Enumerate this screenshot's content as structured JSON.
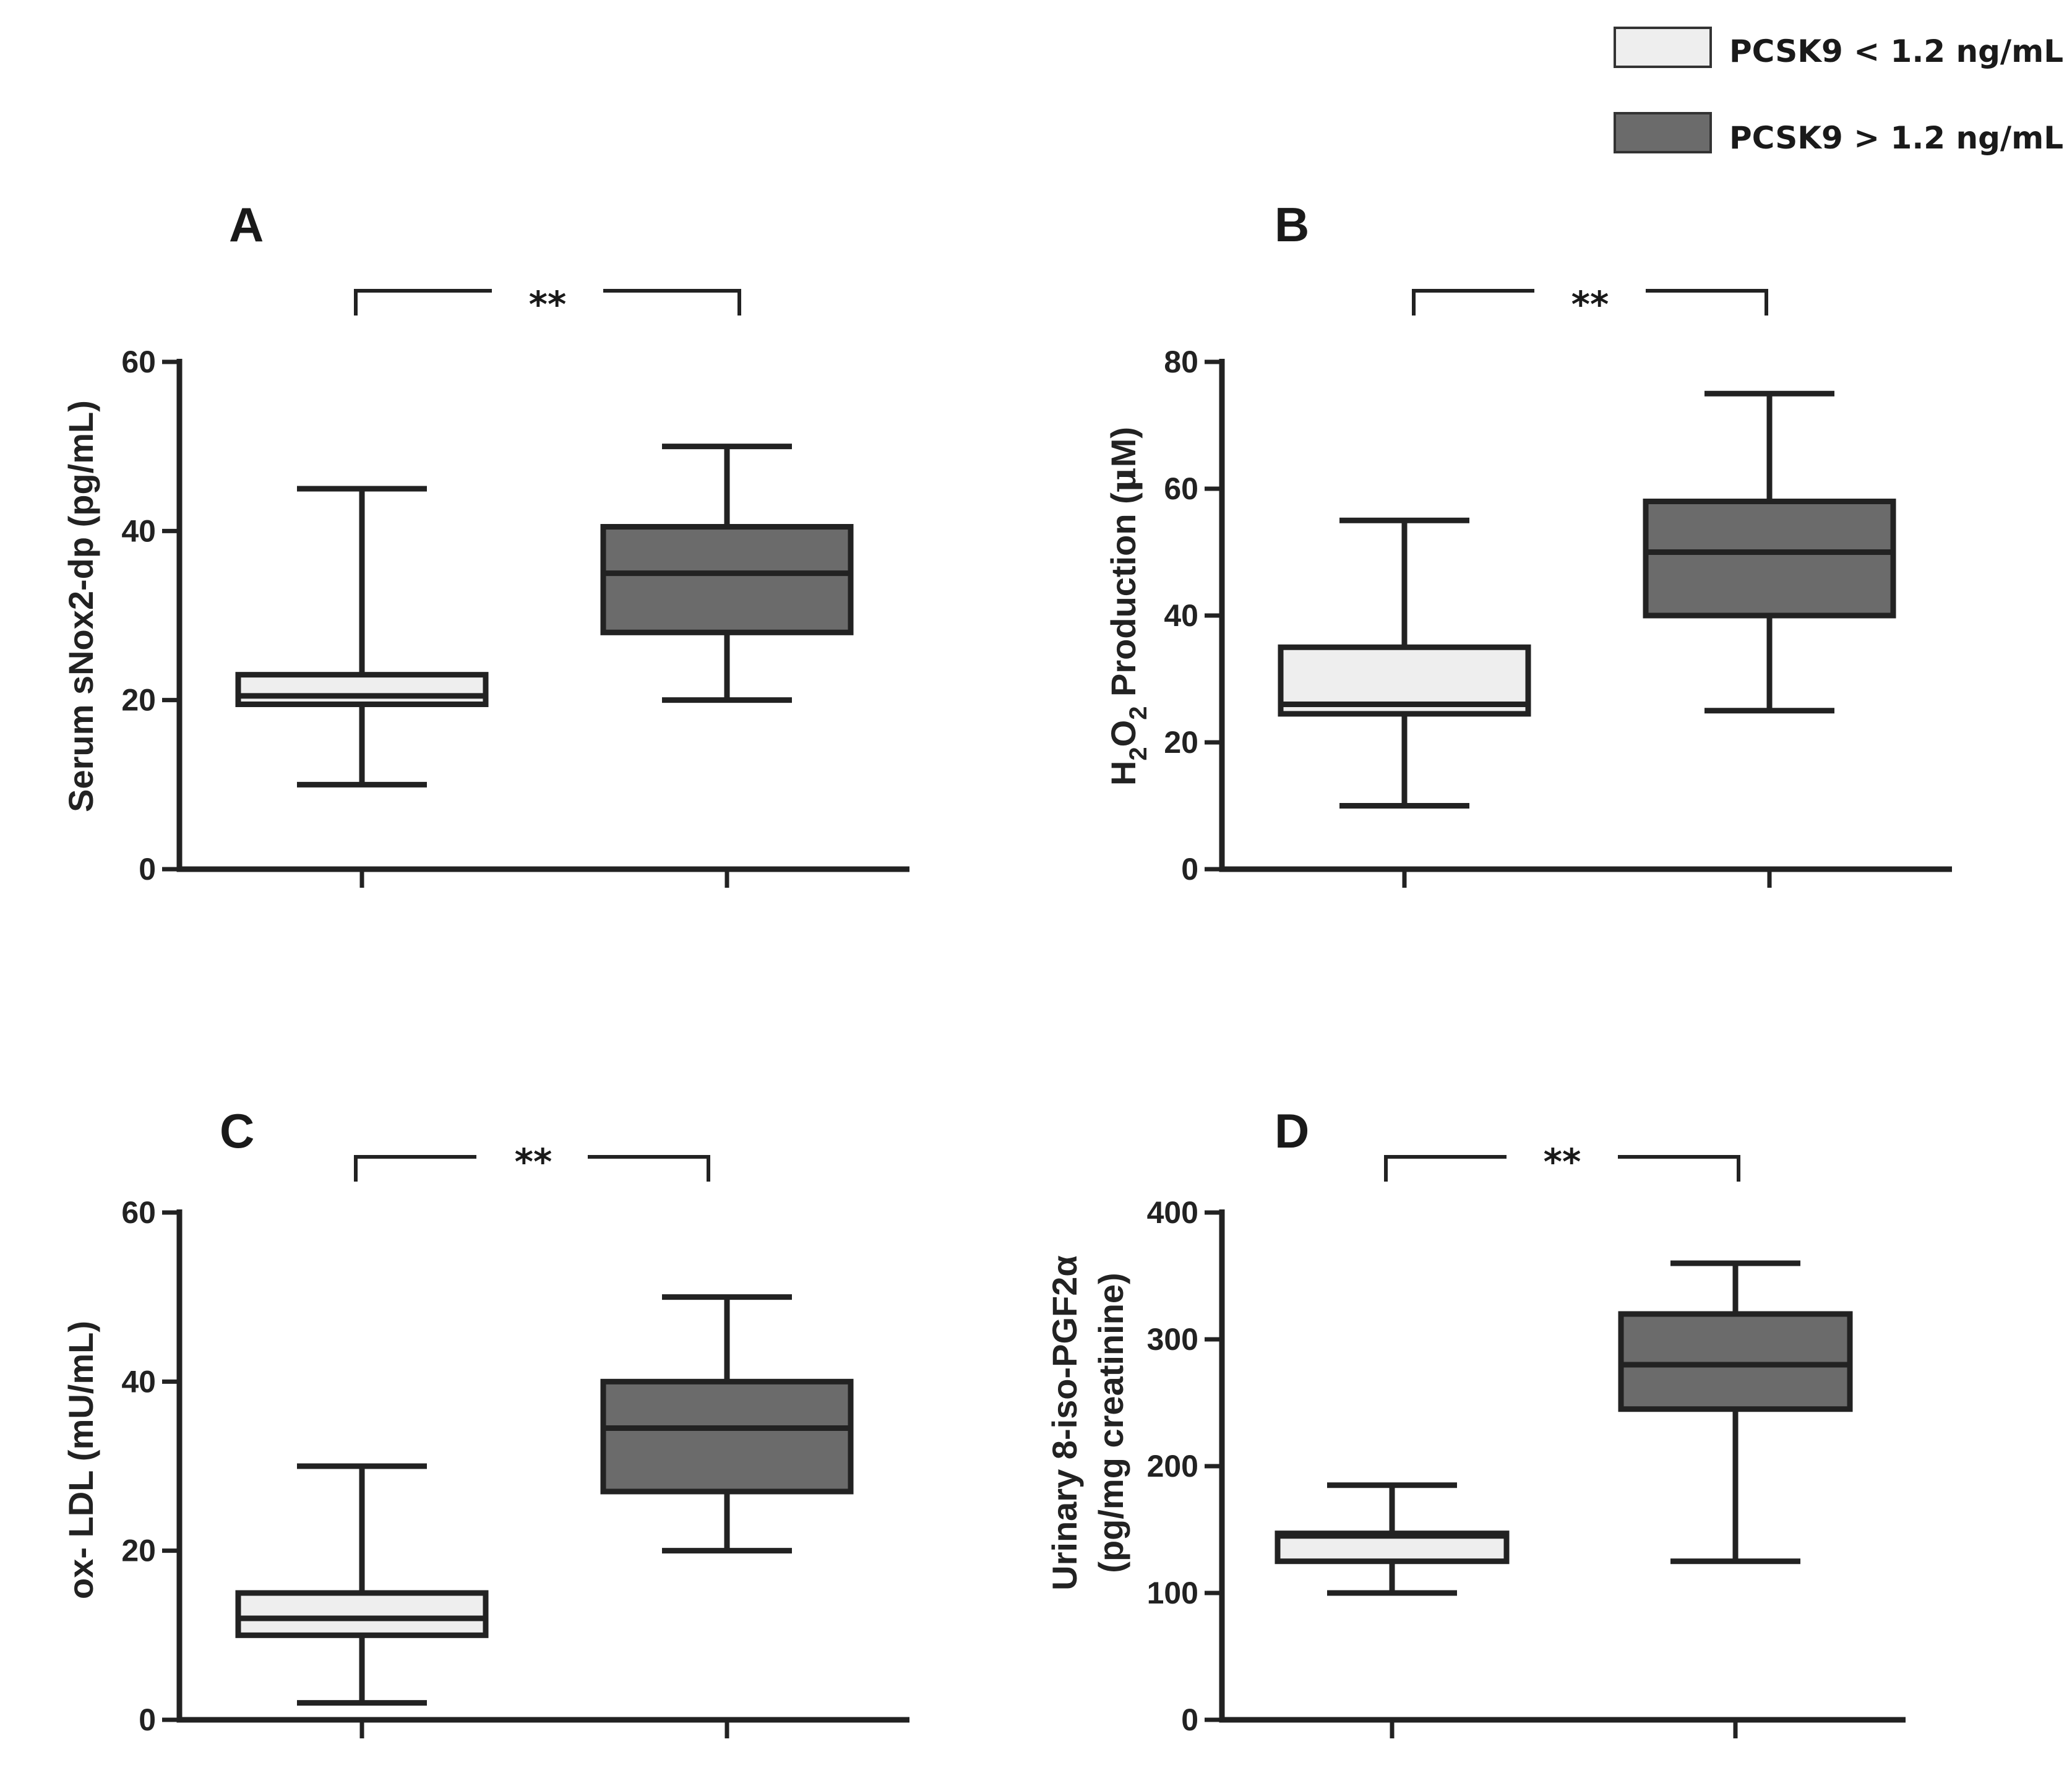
{
  "legend": {
    "entries": [
      {
        "label": "PCSK9 < 1.2 ng/mL",
        "color": "#eeeeee"
      },
      {
        "label": "PCSK9 > 1.2 ng/mL",
        "color": "#6b6b6b"
      }
    ]
  },
  "chart_data": [
    {
      "type": "boxplot",
      "panel": "A",
      "ylabel": "Serum sNox2-dp (pg/mL)",
      "ylim": [
        0,
        60
      ],
      "yticks": [
        0,
        20,
        40,
        60
      ],
      "significance": "**",
      "series": [
        {
          "name": "PCSK9 < 1.2 ng/mL",
          "min": 10,
          "q1": 19.5,
          "median": 20.5,
          "q3": 23,
          "max": 45
        },
        {
          "name": "PCSK9 > 1.2 ng/mL",
          "min": 20,
          "q1": 28,
          "median": 35,
          "q3": 40.5,
          "max": 50
        }
      ]
    },
    {
      "type": "boxplot",
      "panel": "B",
      "ylabel": "H2O2 Production (μM)",
      "ylabel_parts": [
        "H",
        "2",
        "O",
        "2",
        " Production (",
        "μ",
        "M)"
      ],
      "ylim": [
        0,
        80
      ],
      "yticks": [
        0,
        20,
        40,
        60,
        80
      ],
      "significance": "**",
      "series": [
        {
          "name": "PCSK9 < 1.2 ng/mL",
          "min": 10,
          "q1": 24.5,
          "median": 26,
          "q3": 35,
          "max": 55
        },
        {
          "name": "PCSK9 > 1.2 ng/mL",
          "min": 25,
          "q1": 40,
          "median": 50,
          "q3": 58,
          "max": 75
        }
      ]
    },
    {
      "type": "boxplot",
      "panel": "C",
      "ylabel": "ox- LDL (mU/mL)",
      "ylim": [
        0,
        60
      ],
      "yticks": [
        0,
        20,
        40,
        60
      ],
      "significance": "**",
      "series": [
        {
          "name": "PCSK9 < 1.2 ng/mL",
          "min": 2,
          "q1": 10,
          "median": 12,
          "q3": 15,
          "max": 30
        },
        {
          "name": "PCSK9 > 1.2 ng/mL",
          "min": 20,
          "q1": 27,
          "median": 34.5,
          "q3": 40,
          "max": 50
        }
      ]
    },
    {
      "type": "boxplot",
      "panel": "D",
      "ylabel": "Urinary 8-iso-PGF2α (pg/mg creatinine)",
      "ylabel_lines": [
        "Urinary 8-iso-PGF2α",
        "(pg/mg creatinine)"
      ],
      "ylim": [
        0,
        400
      ],
      "yticks": [
        0,
        100,
        200,
        300,
        400
      ],
      "significance": "**",
      "series": [
        {
          "name": "PCSK9 < 1.2 ng/mL",
          "min": 100,
          "q1": 125,
          "median": 145,
          "q3": 147,
          "max": 185
        },
        {
          "name": "PCSK9 > 1.2 ng/mL",
          "min": 125,
          "q1": 245,
          "median": 280,
          "q3": 320,
          "max": 360
        }
      ]
    }
  ]
}
